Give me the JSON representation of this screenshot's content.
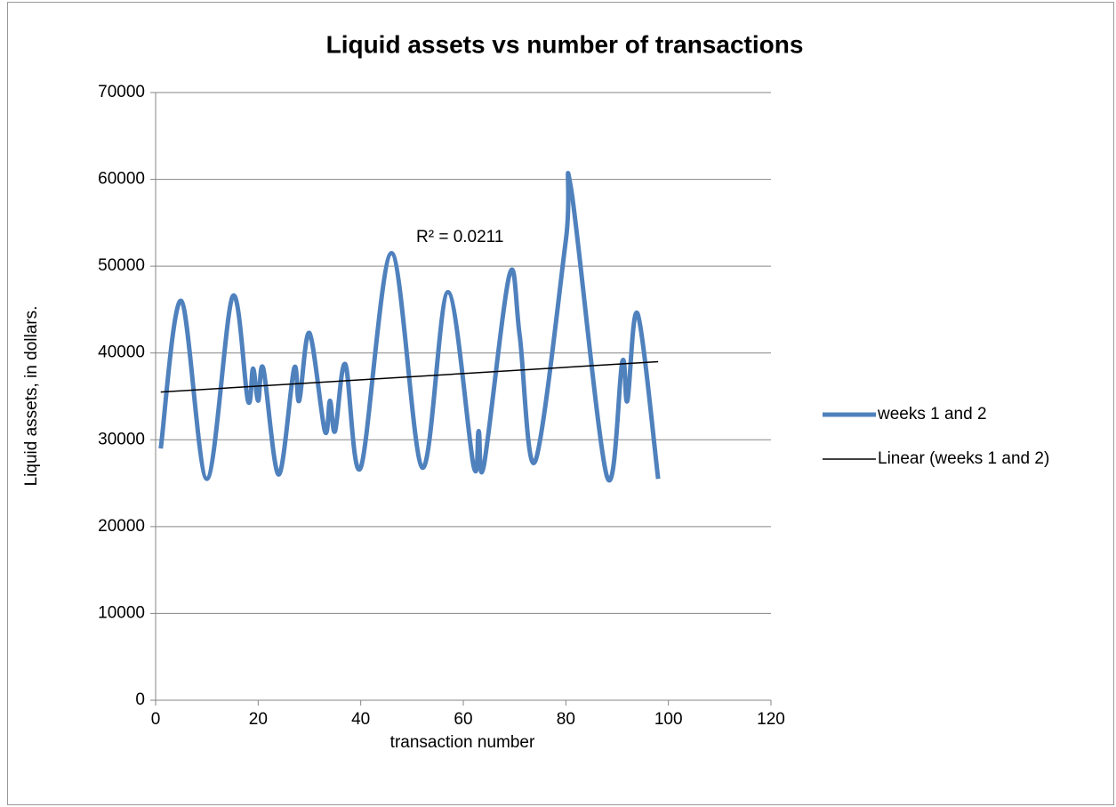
{
  "chart_data": {
    "type": "line",
    "title": "Liquid assets vs number of transactions",
    "xlabel": "transaction number",
    "ylabel": "Liquid assets, in dollars.",
    "annotation": "R² = 0.0211",
    "xlim": [
      0,
      120
    ],
    "xticks": [
      0,
      20,
      40,
      60,
      80,
      100,
      120
    ],
    "ylim": [
      0,
      70000
    ],
    "yticks": [
      0,
      10000,
      20000,
      30000,
      40000,
      50000,
      60000,
      70000
    ],
    "grid": true,
    "legend": "right",
    "series": [
      {
        "name": "weeks 1 and 2",
        "color": "#4f81bd",
        "smooth": true,
        "x": [
          1,
          5,
          10,
          15,
          18,
          19,
          20,
          21,
          24,
          27,
          28,
          30,
          33,
          34,
          35,
          37,
          40,
          46,
          52,
          57,
          62,
          63,
          64,
          69,
          71,
          74,
          80,
          81,
          88,
          91,
          92,
          94,
          98
        ],
        "values": [
          29000,
          46000,
          25500,
          46500,
          34500,
          38200,
          34500,
          38200,
          26000,
          38200,
          34500,
          42300,
          31000,
          34500,
          31000,
          38700,
          26800,
          51500,
          26800,
          47000,
          27000,
          31000,
          27000,
          49000,
          42000,
          27500,
          53000,
          59000,
          25800,
          39000,
          34500,
          44500,
          25500
        ]
      },
      {
        "name": "Linear (weeks 1 and 2)",
        "color": "#000000",
        "smooth": false,
        "x": [
          1,
          98
        ],
        "values": [
          35500,
          39000
        ]
      }
    ]
  }
}
